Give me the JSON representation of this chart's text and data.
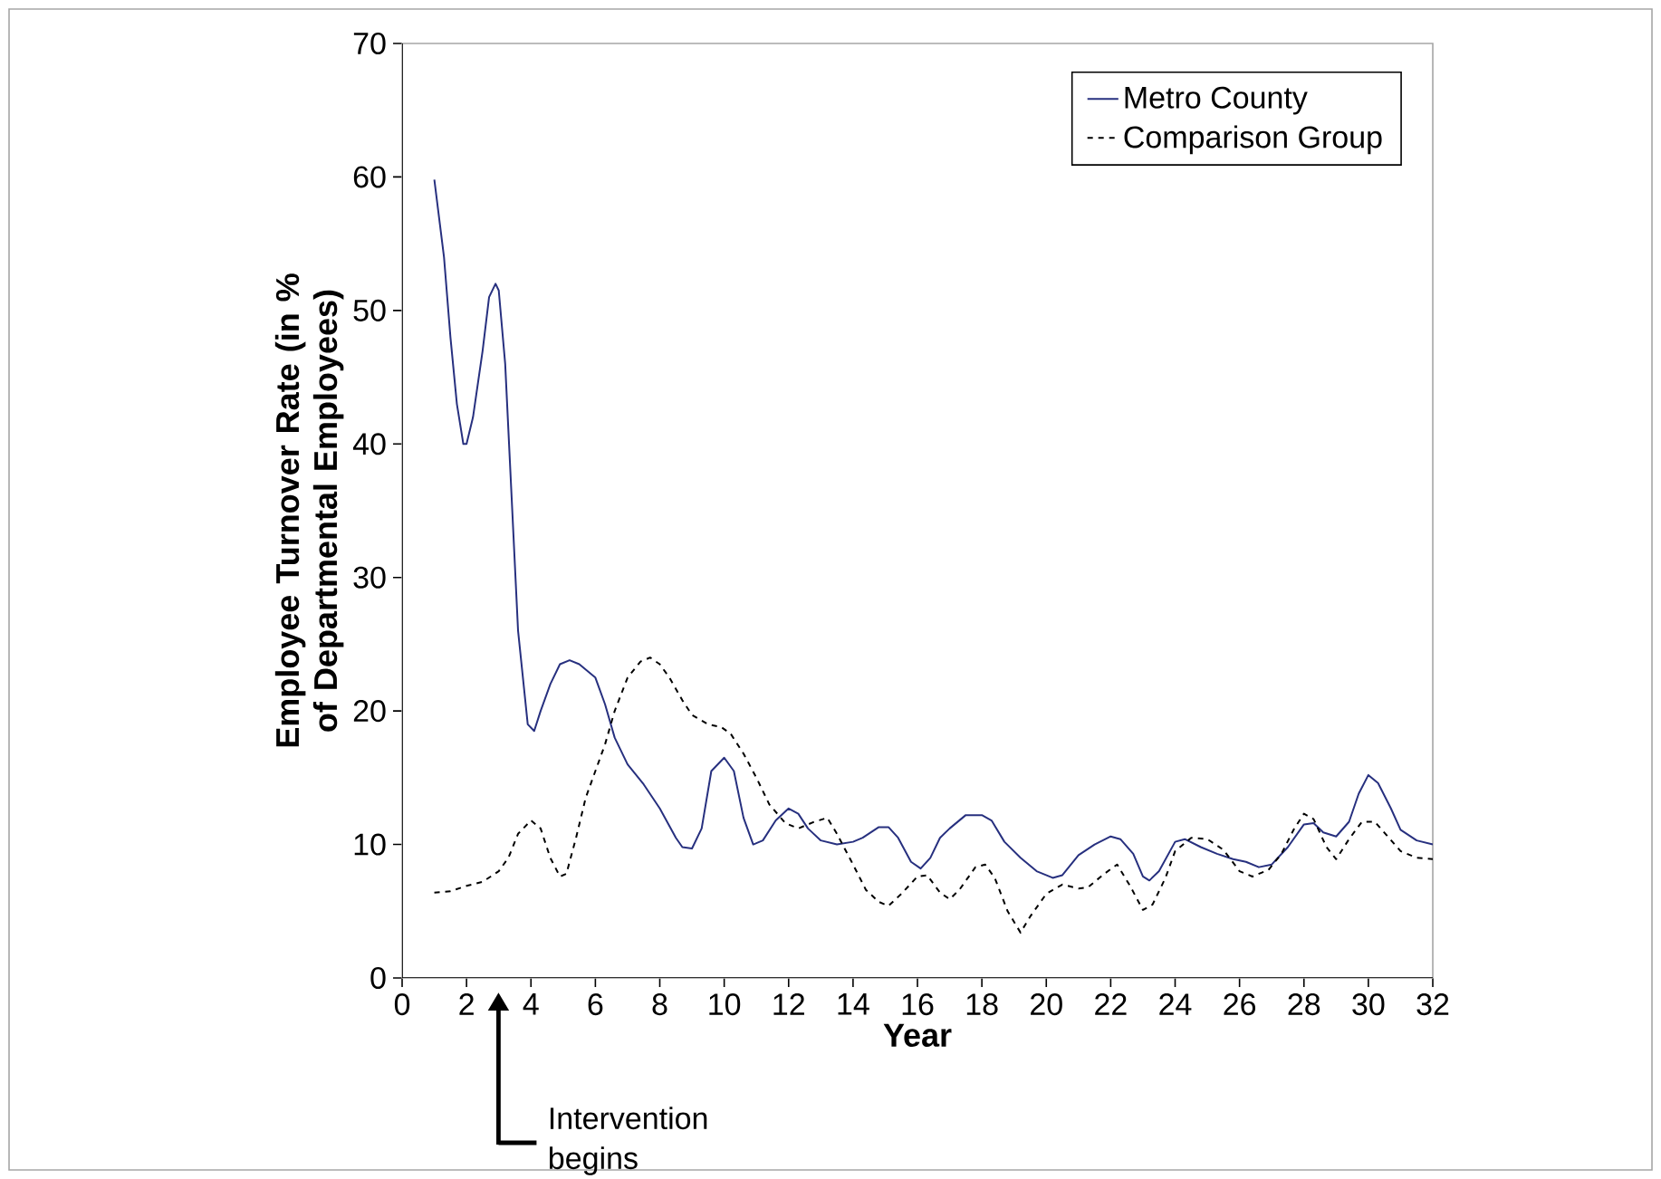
{
  "chart_data": {
    "type": "line",
    "xlabel": "Year",
    "ylabel": "Employee Turnover Rate (in % of Departmental Employees)",
    "xlim": [
      0,
      32
    ],
    "xticks": [
      0,
      2,
      4,
      6,
      8,
      10,
      12,
      14,
      16,
      18,
      20,
      22,
      24,
      26,
      28,
      30,
      32
    ],
    "ylim": [
      0,
      70
    ],
    "yticks": [
      0,
      10,
      20,
      30,
      40,
      50,
      60,
      70
    ],
    "legend": "top right",
    "grid": false,
    "annotations": [
      "Intervention begins"
    ],
    "series": [
      {
        "name": "Metro County",
        "color": "#27307f",
        "line_style": "solid",
        "x": [
          1.0,
          1.3,
          1.5,
          1.7,
          1.9,
          2.0,
          2.2,
          2.5,
          2.7,
          2.9,
          3.0,
          3.2,
          3.4,
          3.6,
          3.9,
          4.1,
          4.3,
          4.6,
          4.9,
          5.2,
          5.5,
          6.0,
          6.3,
          6.6,
          7.0,
          7.5,
          8.0,
          8.5,
          8.7,
          9.0,
          9.3,
          9.6,
          10.0,
          10.3,
          10.6,
          10.9,
          11.2,
          11.6,
          12.0,
          12.3,
          12.6,
          13.0,
          13.5,
          14.0,
          14.3,
          14.8,
          15.1,
          15.4,
          15.8,
          16.1,
          16.4,
          16.7,
          17.0,
          17.5,
          18.0,
          18.3,
          18.7,
          19.2,
          19.7,
          20.2,
          20.5,
          21.0,
          21.5,
          22.0,
          22.3,
          22.7,
          23.0,
          23.2,
          23.5,
          24.0,
          24.3,
          24.8,
          25.3,
          25.8,
          26.2,
          26.6,
          27.0,
          27.5,
          28.0,
          28.3,
          28.6,
          29.0,
          29.4,
          29.7,
          30.0,
          30.3,
          30.7,
          31.0,
          31.5,
          32.0
        ],
        "values": [
          59.8,
          54,
          48,
          43,
          40,
          40,
          42,
          47,
          51,
          52,
          51.5,
          46,
          36,
          26,
          19,
          18.5,
          20,
          22,
          23.5,
          23.8,
          23.5,
          22.5,
          20.5,
          18,
          16,
          14.5,
          12.7,
          10.5,
          9.8,
          9.7,
          11.2,
          15.5,
          16.5,
          15.5,
          12,
          10,
          10.3,
          11.8,
          12.7,
          12.3,
          11.2,
          10.3,
          10,
          10.2,
          10.5,
          11.3,
          11.3,
          10.5,
          8.7,
          8.2,
          9,
          10.5,
          11.2,
          12.2,
          12.2,
          11.8,
          10.2,
          9,
          8,
          7.5,
          7.7,
          9.2,
          10,
          10.6,
          10.4,
          9.3,
          7.6,
          7.3,
          8,
          10.2,
          10.4,
          9.8,
          9.3,
          8.9,
          8.7,
          8.3,
          8.5,
          9.8,
          11.5,
          11.6,
          10.9,
          10.6,
          11.7,
          13.8,
          15.2,
          14.6,
          12.7,
          11.1,
          10.3,
          10.0
        ]
      },
      {
        "name": "Comparison Group",
        "color": "#000000",
        "line_style": "dashed",
        "x": [
          1.0,
          1.5,
          2.0,
          2.5,
          3.0,
          3.3,
          3.6,
          4.0,
          4.3,
          4.6,
          4.9,
          5.1,
          5.4,
          5.7,
          6.0,
          6.3,
          6.6,
          7.0,
          7.4,
          7.7,
          8.0,
          8.3,
          8.7,
          9.0,
          9.5,
          9.9,
          10.2,
          10.6,
          11.0,
          11.4,
          11.9,
          12.3,
          12.8,
          13.2,
          13.5,
          14.0,
          14.4,
          14.8,
          15.1,
          15.5,
          16.0,
          16.3,
          16.7,
          17.0,
          17.3,
          17.8,
          18.1,
          18.4,
          18.8,
          19.2,
          19.5,
          20.0,
          20.5,
          21.0,
          21.3,
          21.8,
          22.2,
          22.6,
          23.0,
          23.3,
          23.7,
          24.0,
          24.5,
          25.0,
          25.5,
          26.0,
          26.4,
          26.9,
          27.3,
          27.7,
          28.0,
          28.3,
          28.7,
          29.0,
          29.4,
          29.8,
          30.2,
          30.6,
          31.0,
          31.5,
          32.0
        ],
        "values": [
          6.4,
          6.5,
          6.9,
          7.2,
          8,
          9,
          10.8,
          11.8,
          11.2,
          9,
          7.6,
          7.8,
          10.5,
          13.5,
          15.5,
          17.5,
          20,
          22.5,
          23.7,
          24,
          23.5,
          22.5,
          20.8,
          19.7,
          19,
          18.8,
          18.3,
          16.8,
          15,
          13,
          11.6,
          11.2,
          11.7,
          12,
          10.8,
          8.5,
          6.6,
          5.7,
          5.4,
          6.3,
          7.6,
          7.7,
          6.4,
          5.9,
          6.6,
          8.3,
          8.5,
          7.5,
          5,
          3.4,
          4.6,
          6.3,
          7,
          6.7,
          6.8,
          7.8,
          8.5,
          6.9,
          5.1,
          5.5,
          7.5,
          9.5,
          10.5,
          10.4,
          9.6,
          8,
          7.6,
          8.1,
          9.3,
          11.2,
          12.3,
          11.9,
          9.8,
          8.9,
          10.4,
          11.7,
          11.7,
          10.6,
          9.5,
          9,
          8.9
        ]
      }
    ]
  }
}
